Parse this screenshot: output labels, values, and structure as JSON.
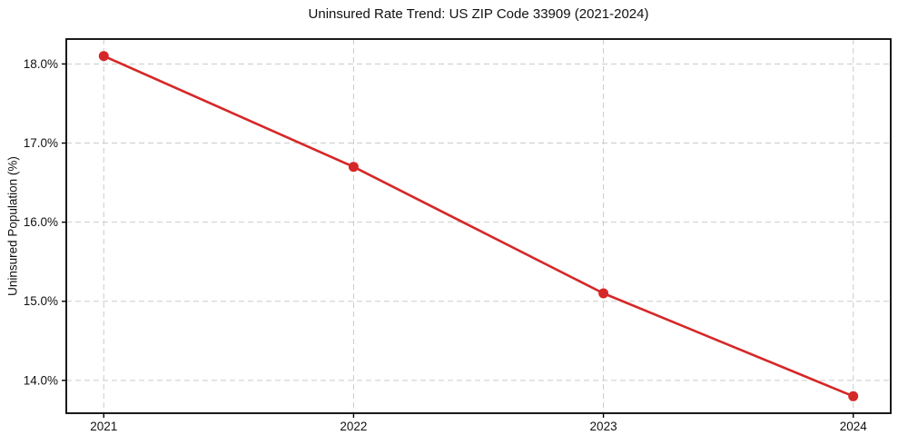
{
  "chart_data": {
    "type": "line",
    "title": "Uninsured Rate Trend: US ZIP Code 33909 (2021-2024)",
    "xlabel": "",
    "ylabel": "Uninsured Population (%)",
    "x": [
      2021,
      2022,
      2023,
      2024
    ],
    "series": [
      {
        "name": "Uninsured rate",
        "values": [
          18.1,
          16.7,
          15.1,
          13.8
        ],
        "color": "#d62728",
        "marker": "circle"
      }
    ],
    "xticks": {
      "values": [
        2021,
        2022,
        2023,
        2024
      ],
      "labels": [
        "2021",
        "2022",
        "2023",
        "2024"
      ]
    },
    "yticks": {
      "values": [
        14,
        15,
        16,
        17,
        18
      ],
      "labels": [
        "14.0%",
        "15.0%",
        "16.0%",
        "17.0%",
        "18.0%"
      ]
    },
    "xlim": [
      2020.85,
      2024.15
    ],
    "ylim": [
      13.585,
      18.315
    ],
    "grid": {
      "show": true,
      "style": "dashed",
      "color": "#cbcbcb"
    },
    "axes": {
      "spine_color": "#000000",
      "tick_color": "#000000"
    },
    "legend": null
  }
}
